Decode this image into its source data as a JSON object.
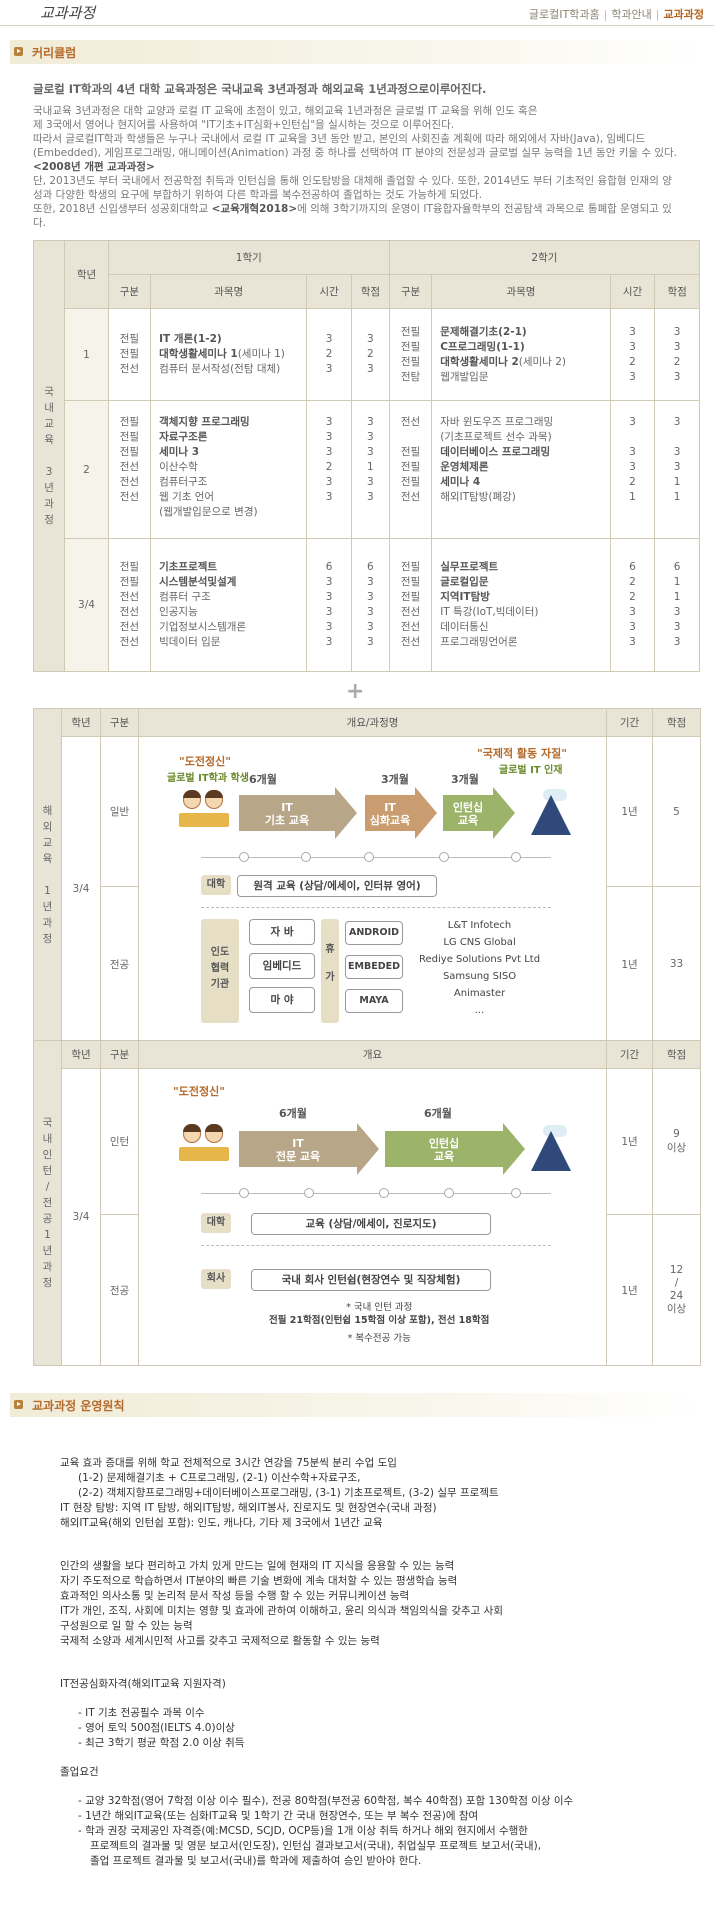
{
  "header": {
    "logo": "교과과정",
    "crumbs": [
      "글로컬IT학과홈",
      "학과안내",
      "교과과정"
    ]
  },
  "section1": {
    "title": "커리큘럼"
  },
  "intro": {
    "heading": "글로컬 IT학과의 4년 대학 교육과정은 국내교육 3년과정과 해외교육 1년과정으로이루어진다.",
    "p1": "국내교육 3년과정은 대학 교양과 로컬 IT 교육에 초점이 있고, 해외교육 1년과정은 글로벌 IT 교육을 위해 인도 혹은",
    "p2": "제 3국에서 영어나 현지어를 사용하여 \"IT기초+IT심화+인턴십\"을 실시하는 것으로 이루어진다.",
    "p3": "따라서 글로컬IT학과 학생들은 누구나 국내에서 로컬 IT 교육을 3년 동안 받고, 본인의 사회진출 계획에 따라 해외에서 자바(Java), 임베디드",
    "p4": "(Embedded), 게임프로그래밍, 애니메이션(Animation) 과정 중 하나를 선택하여 IT 분야의 전문성과 글로벌 실무 능력을 1년 동안 키울 수 있다.",
    "p5": "<2008년 개편 교과과정>",
    "p6": "단, 2013년도 부터 국내에서 전공학점 취득과 인턴십을 통해 인도탐방을 대체해 졸업할 수 있다. 또한, 2014년도 부터 기초적인 융합형 인재의 양",
    "p7": "성과 다양한 학생의 요구에 부합하기 위하여 다른 학과를 복수전공하여 졸업하는 것도 가능하게 되었다.",
    "p8a": "또한, 2018년 신입생부터 성공회대학교 ",
    "p8b": "<교육개혁2018>",
    "p8c": "에 의해 3학기까지의 운영이 IT융합자율학부의 전공탐색 과목으로 통폐합 운영되고 있",
    "p9": "다."
  },
  "t1": {
    "side": "국\n내\n교\n육\n\n3\n년\n과\n정",
    "h_year": "학년",
    "h_s1": "1학기",
    "h_s2": "2학기",
    "h_div": "구분",
    "h_name": "과목명",
    "h_time": "시간",
    "h_credit": "학점",
    "r1": {
      "year": "1",
      "d1": "전필\n전필\n전선",
      "n1a": "IT 개론(1-2)",
      "n1b": "대학생활세미나 1",
      "n1bx": "(세미나 1)",
      "n1c": "컴퓨터 문서작성(전탐 대체)",
      "t1": "3\n2\n3",
      "c1": "3\n2\n3",
      "d2": "전필\n전필\n전필\n전탐",
      "n2a": "문제해결기초(2-1)",
      "n2b": "C프로그래밍(1-1)",
      "n2c": "대학생활세미나 2",
      "n2cx": "(세미나 2)",
      "n2d": "웹개발입문",
      "t2": "3\n3\n2\n3",
      "c2": "3\n3\n2\n3"
    },
    "r2": {
      "year": "2",
      "d1": "전필\n전필\n전필\n전선\n전선\n전선",
      "n1a": "객체지향 프로그래밍",
      "n1b": "자료구조론",
      "n1c": "세미나 3",
      "n1d": "이산수학",
      "n1e": "컴퓨터구조",
      "n1f": "웹 기초 언어",
      "n1g": "(웹개발입문으로 변경)",
      "t1": "3\n3\n3\n2\n3\n3",
      "c1": "3\n3\n3\n1\n3\n3",
      "d2": "전선\n\n전필\n전필\n전필\n전선",
      "n2a": "자바 윈도우즈 프로그래밍",
      "n2ax": "(기초프로젝트 선수 과목)",
      "n2b": "데이터베이스 프로그래밍",
      "n2c": "운영체제론",
      "n2d": "세미나 4",
      "n2e": "해외IT탐방(폐강)",
      "t2": "3\n\n3\n3\n2\n1",
      "c2": "3\n\n3\n3\n1\n1"
    },
    "r3": {
      "year": "3/4",
      "d1": "전필\n전필\n전선\n전선\n전선\n전선",
      "n1a": "기초프로젝트",
      "n1b": "시스템분석및설계",
      "n1c": "컴퓨터 구조",
      "n1d": "인공지능",
      "n1e": "기업정보시스템개론",
      "n1f": "빅데이터 입문",
      "t1": "6\n3\n3\n3\n3\n3",
      "c1": "6\n3\n3\n3\n3\n3",
      "d2": "전필\n전필\n전필\n전선\n전선\n전선",
      "n2a": "실무프로젝트",
      "n2b": "글로컬입문",
      "n2c": "지역IT탐방",
      "n2d": "IT 특강(IoT,빅데이터)",
      "n2e": "데이터통신",
      "n2f": "프로그래밍언어론",
      "t2": "6\n2\n2\n3\n3\n3",
      "c2": "6\n1\n1\n3\n3\n3"
    }
  },
  "plus": "+",
  "t2": {
    "side": "해\n외\n교\n육\n\n1\n년\n과\n정",
    "h_year": "학년",
    "h_div": "구분",
    "h_overview": "개요/과정명",
    "h_period": "기간",
    "h_credit": "학점",
    "year": "3/4",
    "div1": "일반",
    "div2": "전공",
    "period1": "1년",
    "credit1": "5",
    "period2": "1년",
    "credit2": "33",
    "challenge": "\"도전정신\"",
    "student": "글로벌 IT학과 학생",
    "intl": "\"국제적 활동 자질\"",
    "talent": "글로벌 IT 인재",
    "m1": "6개월",
    "m2": "3개월",
    "m3": "3개월",
    "a1": "IT\n기초 교육",
    "a2": "IT\n심화교육",
    "a3": "인턴십\n교육",
    "univ": "대학",
    "remote": "원격 교육 (상담/에세이, 인터뷰 영어)",
    "india": "인도\n협력\n기관",
    "c1": "자 바",
    "c2": "임베디드",
    "c3": "마 야",
    "hu": "휴\n\n가",
    "e1": "ANDROID",
    "e2": "EMBEDED",
    "e3": "MAYA",
    "partners": [
      "L&T Infotech",
      "LG CNS Global",
      "Rediye Solutions Pvt Ltd",
      "Samsung SISO",
      "Animaster",
      "..."
    ]
  },
  "t3": {
    "side": "국\n내\n인\n턴\n/\n전\n공\n1\n년\n과\n정",
    "h_year": "학년",
    "h_div": "구분",
    "h_overview": "개요",
    "h_period": "기간",
    "h_credit": "학점",
    "year": "3/4",
    "div1": "인턴",
    "div2": "전공",
    "period1": "1년",
    "credit1": "9\n이상",
    "period2": "1년",
    "credit2": "12\n/\n24\n이상",
    "challenge": "\"도전정신\"",
    "m1": "6개월",
    "m2": "6개월",
    "a1": "IT\n전문 교육",
    "a2": "인턴십\n교육",
    "univ": "대학",
    "edu": "교육 (상담/에세이, 진로지도)",
    "company": "회사",
    "intern": "국내 회사 인턴쉽(현장연수 및 직장체험)",
    "note1": "* 국내 인턴 과정",
    "note2": "전필 21학점(인턴쉽 15학점 이상 포함), 전선 18학점",
    "note3": "* 복수전공 가능"
  },
  "section2": {
    "title": "교과과정 운영원칙"
  },
  "rules": {
    "a1": "교육 효과 증대를 위해 학교 전체적으로 3시간 연강을 75분씩 분리 수업 도입",
    "a2": "(1-2) 문제해결기초 + C프로그래밍, (2-1) 이산수학+자료구조,",
    "a3": "(2-2) 객체지향프로그래밍+데이터베이스프로그래밍, (3-1) 기초프로젝트, (3-2) 실무 프로젝트",
    "a4": "IT 현장 탐방: 지역 IT 탐방, 해외IT탐방, 해외IT봉사, 진로지도 및 현장연수(국내 과정)",
    "a5": "해외IT교육(해외 인턴쉽 포함): 인도, 캐나다, 기타 제 3국에서 1년간 교육",
    "b1": "인간의 생활을 보다 편리하고 가치 있게 만드는 일에 현재의 IT 지식을 응용할 수 있는 능력",
    "b2": "자기 주도적으로 학습하면서 IT분야의 빠른 기술 변화에 계속 대처할 수 있는 평생학습 능력",
    "b3": "효과적인 의사소통 및 논리적 문서 작성 등을 수행 할 수 있는 커뮤니케이션 능력",
    "b4": "IT가 개인, 조직, 사회에 미치는 영향 및 효과에 관하여 이해하고, 윤리 의식과 책임의식을 갖추고 사회",
    "b5": "구성원으로 일 할 수 있는 능력",
    "b6": "국제적 소양과 세계시민적 사고를 갖추고 국제적으로 활동할 수 있는 능력",
    "c0": "IT전공심화자격(해외IT교육 지원자격)",
    "c1": "- IT 기초 전공필수 과목 이수",
    "c2": "- 영어 토익 500점(IELTS 4.0)이상",
    "c3": "- 최근 3학기 평균 학점 2.0 이상 취득",
    "d0": "졸업요건",
    "d1": "- 교양 32학점(영어 7학점 이상 이수 필수), 전공 80학점(부전공 60학점, 복수 40학점) 포함 130학점 이상 이수",
    "d2": "- 1년간 해외IT교육(또는 심화IT교육 및 1학기 간 국내 현장연수, 또는 부 복수 전공)에 참여",
    "d3": "- 학과 권장 국제공인 자격증(예:MCSD, SCJD, OCP등)을 1개 이상 취득 하거나 해외 현지에서 수행한",
    "d4": "프로젝트의 결과물 및 영문 보고서(인도장), 인턴십 결과보고서(국내), 취업실무 프로젝트 보고서(국내),",
    "d5": "졸업 프로젝트 결과물 및 보고서(국내)를 학과에 제출하여 승인 받아야 한다."
  },
  "colors": {
    "accent": "#b46a2a",
    "header_bg": "#e9e5d6",
    "arrow1": "#b8a688",
    "arrow2": "#c99d70",
    "arrow3": "#9cb46a"
  }
}
